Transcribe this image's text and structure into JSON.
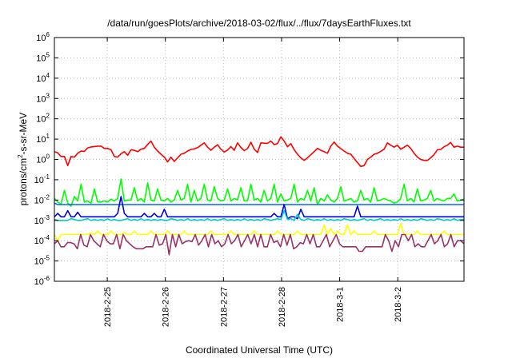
{
  "chart_data": {
    "type": "line",
    "title": "/data/run/goesPlots/archive/2018-03-02/flux/../flux/7daysEarthFluxes.txt",
    "xlabel": "Coordinated Universal Time (UTC)",
    "ylabel_main": "protons/cm",
    "ylabel_sup": "2",
    "ylabel_tail": "-s-sr-MeV",
    "yscale": "log",
    "ylim_exp": [
      -6,
      6
    ],
    "ytick_base": "10",
    "yticks": [
      "-6",
      "-5",
      "-4",
      "-3",
      "-2",
      "-1",
      "0",
      "1",
      "2",
      "3",
      "4",
      "5",
      "6"
    ],
    "xlim": [
      0,
      7.05
    ],
    "xticks": [
      {
        "at": 0.91,
        "label": "2018-2-25"
      },
      {
        "at": 1.91,
        "label": "2018-2-26"
      },
      {
        "at": 2.91,
        "label": "2018-2-27"
      },
      {
        "at": 3.91,
        "label": "2018-2-28"
      },
      {
        "at": 4.91,
        "label": "2018-3-1"
      },
      {
        "at": 5.91,
        "label": "2018-3-2"
      }
    ],
    "grid": true,
    "series": [
      {
        "color": "#ff0000",
        "values": [
          2.4,
          2.1,
          1.4,
          1.4,
          0.5,
          1.4,
          1.3,
          2.0,
          2.6,
          2.5,
          3.7,
          4.1,
          4.3,
          4.5,
          4.5,
          3.5,
          3.5,
          3.0,
          1.4,
          1.3,
          1.9,
          2.4,
          1.6,
          3.0,
          2.8,
          2.4,
          3.2,
          3.5,
          5.5,
          8.0,
          4.0,
          2.6,
          1.8,
          1.3,
          0.75,
          1.3,
          0.8,
          1.2,
          1.8,
          2.0,
          2.6,
          3.1,
          3.3,
          3.8,
          5.0,
          6.5,
          4.0,
          2.8,
          4.0,
          5.3,
          3.2,
          2.3,
          2.9,
          4.3,
          2.8,
          6.5,
          3.9,
          2.7,
          3.4,
          7.0,
          3.2,
          2.2,
          6.5,
          6.3,
          6.2,
          8.0,
          5.4,
          6.0,
          13,
          8.0,
          4.2,
          6.0,
          3.0,
          1.8,
          1.2,
          0.9,
          1.2,
          1.7,
          2.4,
          3.5,
          2.8,
          2.4,
          2.0,
          4.5,
          7.2,
          4.5,
          3.4,
          2.6,
          2.0,
          1.8,
          1.1,
          0.7,
          0.45,
          0.5,
          1.0,
          1.3,
          1.8,
          2.0,
          2.5,
          3.2,
          6.5,
          5.0,
          4.0,
          5.0,
          3.2,
          4.0,
          5.0,
          3.5,
          2.0,
          1.3,
          1.0,
          0.9,
          0.9,
          1.2,
          1.7,
          3.0,
          3.1,
          4.2,
          5.0,
          6.8,
          4.0,
          4.5,
          4.0,
          4.0
        ]
      },
      {
        "color": "#00ff00",
        "values": [
          0.012,
          0.008,
          0.006,
          0.03,
          0.007,
          0.005,
          0.015,
          0.009,
          0.06,
          0.008,
          0.009,
          0.007,
          0.035,
          0.008,
          0.008,
          0.009,
          0.008,
          0.011,
          0.009,
          0.012,
          0.11,
          0.009,
          0.01,
          0.01,
          0.04,
          0.009,
          0.012,
          0.008,
          0.07,
          0.01,
          0.009,
          0.035,
          0.01,
          0.009,
          0.012,
          0.008,
          0.01,
          0.03,
          0.01,
          0.012,
          0.06,
          0.008,
          0.03,
          0.009,
          0.012,
          0.06,
          0.01,
          0.009,
          0.045,
          0.012,
          0.009,
          0.01,
          0.035,
          0.009,
          0.012,
          0.01,
          0.04,
          0.009,
          0.009,
          0.06,
          0.01,
          0.012,
          0.008,
          0.03,
          0.009,
          0.012,
          0.06,
          0.008,
          0.02,
          0.009,
          0.01,
          0.012,
          0.06,
          0.008,
          0.012,
          0.01,
          0.03,
          0.009,
          0.04,
          0.006,
          0.012,
          0.009,
          0.018,
          0.01,
          0.008,
          0.012,
          0.045,
          0.009,
          0.01,
          0.012,
          0.008,
          0.009,
          0.03,
          0.01,
          0.012,
          0.008,
          0.04,
          0.009,
          0.01,
          0.012,
          0.01,
          0.009,
          0.007,
          0.008,
          0.012,
          0.06,
          0.009,
          0.012,
          0.008,
          0.035,
          0.009,
          0.01,
          0.012,
          0.03,
          0.009,
          0.012,
          0.01,
          0.009,
          0.012,
          0.012,
          0.02,
          0.009,
          0.01,
          0.011
        ]
      },
      {
        "color": "#0066ff",
        "values": [
          0.007,
          0.006,
          0.006,
          0.006,
          0.006,
          0.006,
          0.006,
          0.006,
          0.006,
          0.006,
          0.006,
          0.006,
          0.006,
          0.006,
          0.006,
          0.006,
          0.006,
          0.006,
          0.006,
          0.006,
          0.006,
          0.006,
          0.006,
          0.006,
          0.006,
          0.006,
          0.006,
          0.006,
          0.006,
          0.006,
          0.006,
          0.006,
          0.006,
          0.006,
          0.006,
          0.006,
          0.006,
          0.006,
          0.006,
          0.006,
          0.006,
          0.006,
          0.006,
          0.006,
          0.006,
          0.006,
          0.006,
          0.006,
          0.006,
          0.006,
          0.006,
          0.006,
          0.006,
          0.006,
          0.006,
          0.006,
          0.006,
          0.006,
          0.006,
          0.006,
          0.006,
          0.006,
          0.006,
          0.006,
          0.006,
          0.006,
          0.006,
          0.006,
          0.006,
          0.006,
          0.006,
          0.006,
          0.006,
          0.006,
          0.006,
          0.006,
          0.006,
          0.006,
          0.006,
          0.006,
          0.006,
          0.006,
          0.006,
          0.006,
          0.006,
          0.006,
          0.006,
          0.006,
          0.006,
          0.006,
          0.006,
          0.006,
          0.006,
          0.006,
          0.006,
          0.006,
          0.006,
          0.006,
          0.006,
          0.006,
          0.006,
          0.006,
          0.006,
          0.006,
          0.006,
          0.006,
          0.006,
          0.006,
          0.006,
          0.006,
          0.006,
          0.006,
          0.006,
          0.006,
          0.006,
          0.006,
          0.006,
          0.006,
          0.006,
          0.006,
          0.006,
          0.006,
          0.006,
          0.006
        ]
      },
      {
        "color": "#0000dd",
        "values": [
          0.0015,
          0.0022,
          0.0015,
          0.0015,
          0.003,
          0.0015,
          0.0015,
          0.0025,
          0.0015,
          0.0015,
          0.0015,
          0.0015,
          0.0015,
          0.0015,
          0.0015,
          0.0015,
          0.0015,
          0.0015,
          0.0015,
          0.0022,
          0.015,
          0.0022,
          0.0015,
          0.0015,
          0.0015,
          0.0015,
          0.0015,
          0.0022,
          0.0015,
          0.0015,
          0.0022,
          0.0015,
          0.0015,
          0.0035,
          0.0015,
          0.0015,
          0.0015,
          0.0015,
          0.0015,
          0.0015,
          0.0015,
          0.0015,
          0.0015,
          0.0015,
          0.0015,
          0.0015,
          0.0015,
          0.0015,
          0.0015,
          0.0015,
          0.0015,
          0.0015,
          0.0015,
          0.0015,
          0.0015,
          0.0015,
          0.0015,
          0.0015,
          0.0015,
          0.0015,
          0.0015,
          0.0015,
          0.0015,
          0.0015,
          0.0015,
          0.0015,
          0.0022,
          0.0015,
          0.0015,
          0.006,
          0.0012,
          0.0015,
          0.0015,
          0.0012,
          0.0035,
          0.0015,
          0.0015,
          0.0015,
          0.0015,
          0.0015,
          0.0015,
          0.0015,
          0.0015,
          0.0015,
          0.0015,
          0.0015,
          0.0015,
          0.0015,
          0.0015,
          0.0015,
          0.0015,
          0.005,
          0.0015,
          0.0015,
          0.0015,
          0.0015,
          0.0015,
          0.0015,
          0.0015,
          0.0015,
          0.0015,
          0.0015,
          0.0015,
          0.0015,
          0.0015,
          0.0015,
          0.0015,
          0.0015,
          0.0015,
          0.0015,
          0.0015,
          0.0015,
          0.0015,
          0.0015,
          0.0015,
          0.0015,
          0.0015,
          0.0015,
          0.0015,
          0.0015,
          0.0015,
          0.0015,
          0.0015,
          0.0015
        ]
      },
      {
        "color": "#00cccc",
        "values": [
          0.0011,
          0.001,
          0.001,
          0.001,
          0.001,
          0.0012,
          0.0011,
          0.001,
          0.001,
          0.0011,
          0.0012,
          0.001,
          0.0011,
          0.001,
          0.0011,
          0.001,
          0.0012,
          0.001,
          0.0011,
          0.001,
          0.001,
          0.0011,
          0.0012,
          0.001,
          0.0011,
          0.001,
          0.0012,
          0.001,
          0.0011,
          0.001,
          0.0011,
          0.001,
          0.0011,
          0.001,
          0.001,
          0.0012,
          0.0011,
          0.001,
          0.0011,
          0.001,
          0.0012,
          0.001,
          0.0011,
          0.001,
          0.0011,
          0.001,
          0.0012,
          0.001,
          0.0011,
          0.001,
          0.0011,
          0.0012,
          0.001,
          0.0011,
          0.001,
          0.0011,
          0.001,
          0.0012,
          0.001,
          0.0011,
          0.001,
          0.0011,
          0.001,
          0.0012,
          0.0011,
          0.001,
          0.0011,
          0.0012,
          0.0011,
          0.003,
          0.0011,
          0.0012,
          0.001,
          0.002,
          0.0011,
          0.001,
          0.0012,
          0.0011,
          0.001,
          0.0011,
          0.001,
          0.0012,
          0.001,
          0.0011,
          0.001,
          0.0011,
          0.001,
          0.0012,
          0.0011,
          0.001,
          0.0011,
          0.001,
          0.0011,
          0.0012,
          0.001,
          0.0011,
          0.001,
          0.0011,
          0.0012,
          0.001,
          0.0011,
          0.001,
          0.0011,
          0.001,
          0.0012,
          0.001,
          0.0011,
          0.001,
          0.0011,
          0.001,
          0.0012,
          0.0011,
          0.001,
          0.0011,
          0.001,
          0.0012,
          0.0011,
          0.001,
          0.0011,
          0.001,
          0.0012,
          0.001,
          0.0011,
          0.0011
        ]
      },
      {
        "color": "#ffff00",
        "values": [
          0.0002,
          0.0001,
          0.0002,
          0.0002,
          0.0002,
          0.0002,
          0.0002,
          0.0002,
          0.0002,
          0.0002,
          0.0002,
          0.00025,
          0.0002,
          0.0003,
          0.0002,
          0.0002,
          0.0002,
          0.0003,
          0.0002,
          0.0002,
          0.0002,
          0.00025,
          0.0002,
          0.0002,
          0.0003,
          0.0002,
          0.0002,
          0.0002,
          0.0002,
          0.0003,
          0.0002,
          0.0002,
          0.0002,
          0.0002,
          0.0003,
          0.0002,
          0.0002,
          0.0002,
          0.0002,
          0.0003,
          0.0002,
          0.0002,
          0.0002,
          0.0002,
          0.0002,
          0.0002,
          0.0002,
          0.0003,
          0.0002,
          0.0002,
          0.0002,
          0.0002,
          0.0002,
          0.0003,
          0.0002,
          0.0002,
          0.0002,
          0.0002,
          0.0002,
          0.0002,
          0.0003,
          0.0002,
          0.0002,
          0.0002,
          0.0002,
          0.0002,
          0.0002,
          0.0003,
          0.0002,
          0.0002,
          0.0002,
          0.0002,
          0.0002,
          0.0003,
          0.0002,
          0.0002,
          0.0002,
          0.0002,
          0.0002,
          0.0002,
          0.0002,
          0.0006,
          0.0002,
          0.0004,
          0.0002,
          0.0003,
          0.0002,
          0.0002,
          0.0006,
          0.0002,
          0.0003,
          0.0002,
          0.0002,
          0.0002,
          0.0002,
          0.0002,
          0.0003,
          0.0002,
          0.0002,
          0.0002,
          0.0002,
          0.0002,
          0.0002,
          0.0002,
          0.0007,
          0.0002,
          0.0002,
          0.0002,
          0.0002,
          0.0003,
          0.0002,
          0.0002,
          0.0002,
          0.0002,
          0.0002,
          0.0002,
          0.0002,
          0.0003,
          0.0002,
          0.0002,
          0.0002,
          0.0002,
          0.0002,
          0.0002
        ]
      },
      {
        "color": "#993366",
        "values": [
          7e-05,
          0.0001,
          5e-05,
          5e-05,
          8e-05,
          8e-05,
          7e-05,
          4e-05,
          0.0002,
          6e-05,
          5e-05,
          0.0002,
          0.0001,
          7e-05,
          5e-05,
          0.0002,
          0.0001,
          7e-05,
          7e-05,
          0.0002,
          4e-05,
          0.0002,
          0.0001,
          7e-05,
          5e-05,
          4e-05,
          4e-05,
          4e-05,
          5e-05,
          5e-05,
          5e-05,
          0.0002,
          6e-05,
          7e-05,
          0.0002,
          2e-05,
          0.0002,
          5e-05,
          0.0002,
          7e-05,
          9e-05,
          0.0001,
          9e-05,
          0.0002,
          6e-05,
          0.0001,
          0.0002,
          5e-05,
          0.0002,
          7e-05,
          0.0001,
          5e-05,
          7e-05,
          0.0002,
          7e-05,
          0.0001,
          0.0002,
          5e-05,
          0.0001,
          0.0002,
          7e-05,
          0.0002,
          5e-05,
          0.0002,
          5e-05,
          5e-05,
          0.0002,
          8e-05,
          0.0001,
          5e-05,
          0.0002,
          6e-05,
          0.0002,
          4e-05,
          5e-05,
          8e-05,
          7e-05,
          0.0002,
          7e-05,
          0.0002,
          5e-05,
          5e-05,
          0.0001,
          0.0002,
          5e-05,
          0.0001,
          0.0002,
          7e-05,
          5e-05,
          5e-05,
          5e-05,
          5e-05,
          5e-05,
          3e-05,
          3e-05,
          5e-05,
          5e-05,
          5e-05,
          5e-05,
          5e-05,
          5e-05,
          0.0002,
          0.0001,
          3e-05,
          0.0001,
          5e-05,
          0.0002,
          0.0002,
          0.0001,
          0.0002,
          5e-05,
          7e-05,
          5e-05,
          5e-05,
          0.0001,
          0.0002,
          7e-05,
          0.0001,
          0.0002,
          5e-05,
          7e-05,
          0.0002,
          5e-05,
          0.0001,
          0.0001,
          7e-05
        ]
      }
    ]
  }
}
